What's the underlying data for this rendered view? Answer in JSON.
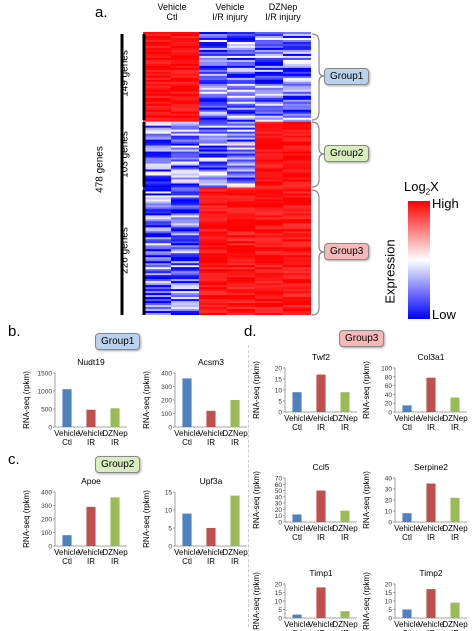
{
  "panel_labels": {
    "a": "a.",
    "b": "b.",
    "c": "c.",
    "d": "d."
  },
  "heatmap": {
    "columns": [
      {
        "line1": "Vehicle",
        "line2": "Ctl"
      },
      {
        "line1": "Vehicle",
        "line2": "I/R injury"
      },
      {
        "line1": "DZNep",
        "line2": "I/R injury"
      }
    ],
    "total_label": "478 genes",
    "groups": [
      {
        "gene_label": "149 genes",
        "name": "Group1",
        "color": "#b9d3ee"
      },
      {
        "gene_label": "103 genes",
        "name": "Group2",
        "color": "#d8eebf"
      },
      {
        "gene_label": "226 genes",
        "name": "Group3",
        "color": "#f6b9b9"
      }
    ],
    "colorbar": {
      "title": "Log",
      "title_sub": "2",
      "title_tail": "X",
      "high": "High",
      "low": "Low",
      "axis": "Expression",
      "high_color": "#ff0000",
      "mid_color": "#ffffff",
      "low_color": "#0000ff"
    }
  },
  "section_badges": {
    "b": "Group1",
    "c": "Group2",
    "d": "Group3"
  },
  "chart_data": [
    {
      "type": "bar",
      "title": "Nudt19",
      "ylabel": "RNA-seq (rpkm)",
      "categories": [
        [
          "Vehicle",
          "Ctl"
        ],
        [
          "Vehicle",
          "IR"
        ],
        [
          "DZNep",
          "IR"
        ]
      ],
      "values": [
        1050,
        480,
        520
      ],
      "ylim": [
        0,
        1500
      ],
      "yticks": [
        0,
        500,
        1000,
        1500
      ]
    },
    {
      "type": "bar",
      "title": "Acsm3",
      "ylabel": "RNA-seq (rpkm)",
      "categories": [
        [
          "Vehicle",
          "Ctl"
        ],
        [
          "Vehicle",
          "IR"
        ],
        [
          "DZNep",
          "IR"
        ]
      ],
      "values": [
        360,
        120,
        200
      ],
      "ylim": [
        0,
        400
      ],
      "yticks": [
        0,
        100,
        200,
        300,
        400
      ]
    },
    {
      "type": "bar",
      "title": "Apoe",
      "ylabel": "RNA-seq (rpkm)",
      "categories": [
        [
          "Vehicle",
          "Ctl"
        ],
        [
          "Vehicle",
          "IR"
        ],
        [
          "DZNep",
          "IR"
        ]
      ],
      "values": [
        80,
        290,
        360
      ],
      "ylim": [
        0,
        400
      ],
      "yticks": [
        0,
        100,
        200,
        300,
        400
      ]
    },
    {
      "type": "bar",
      "title": "Upf3a",
      "ylabel": "RNA-seq (rpkm)",
      "categories": [
        [
          "Vehicle",
          "Ctl"
        ],
        [
          "Vehicle",
          "IR"
        ],
        [
          "DZNep",
          "IR"
        ]
      ],
      "values": [
        9,
        5,
        14
      ],
      "ylim": [
        0,
        15
      ],
      "yticks": [
        0,
        5,
        10,
        15
      ]
    },
    {
      "type": "bar",
      "title": "Twf2",
      "ylabel": "RNA-seq (rpkm)",
      "categories": [
        [
          "Vehicle",
          "Ctl"
        ],
        [
          "Vehicle",
          "IR"
        ],
        [
          "DZNep",
          "IR"
        ]
      ],
      "values": [
        9,
        17,
        9
      ],
      "ylim": [
        0,
        20
      ],
      "yticks": [
        0,
        5,
        10,
        15,
        20
      ]
    },
    {
      "type": "bar",
      "title": "Col3a1",
      "ylabel": "RNA-seq (rpkm)",
      "categories": [
        [
          "Vehicle",
          "Ctl"
        ],
        [
          "Vehicle",
          "IR"
        ],
        [
          "DZNep",
          "IR"
        ]
      ],
      "values": [
        15,
        78,
        33
      ],
      "ylim": [
        0,
        100
      ],
      "yticks": [
        0,
        20,
        40,
        60,
        80,
        100
      ]
    },
    {
      "type": "bar",
      "title": "Ccl5",
      "ylabel": "RNA-seq (rpkm)",
      "categories": [
        [
          "Vehicle",
          "Ctl"
        ],
        [
          "Vehicle",
          "IR"
        ],
        [
          "DZNep",
          "IR"
        ]
      ],
      "values": [
        12,
        50,
        18
      ],
      "ylim": [
        0,
        70
      ],
      "yticks": [
        0,
        10,
        20,
        30,
        40,
        50,
        60,
        70
      ]
    },
    {
      "type": "bar",
      "title": "Serpine2",
      "ylabel": "RNA-seq (rpkm)",
      "categories": [
        [
          "Vehicle",
          "Ctl"
        ],
        [
          "Vehicle",
          "IR"
        ],
        [
          "DZNep",
          "IR"
        ]
      ],
      "values": [
        8,
        35,
        22
      ],
      "ylim": [
        0,
        40
      ],
      "yticks": [
        0,
        10,
        20,
        30,
        40
      ]
    },
    {
      "type": "bar",
      "title": "Timp1",
      "ylabel": "RNA-seq (rpkm)",
      "categories": [
        [
          "Vehicle",
          "Ctl"
        ],
        [
          "Vehicle",
          "IR"
        ],
        [
          "DZNep",
          "IR"
        ]
      ],
      "values": [
        2,
        18,
        4
      ],
      "ylim": [
        0,
        20
      ],
      "yticks": [
        0,
        5,
        10,
        15,
        20
      ]
    },
    {
      "type": "bar",
      "title": "Timp2",
      "ylabel": "RNA-seq (rpkm)",
      "categories": [
        [
          "Vehicle",
          "Ctl"
        ],
        [
          "Vehicle",
          "IR"
        ],
        [
          "DZNep",
          "IR"
        ]
      ],
      "values": [
        5,
        17,
        9
      ],
      "ylim": [
        0,
        20
      ],
      "yticks": [
        0,
        5,
        10,
        15,
        20
      ]
    }
  ],
  "bar_colors": [
    "#4f81bd",
    "#c0504d",
    "#9bbb59"
  ]
}
